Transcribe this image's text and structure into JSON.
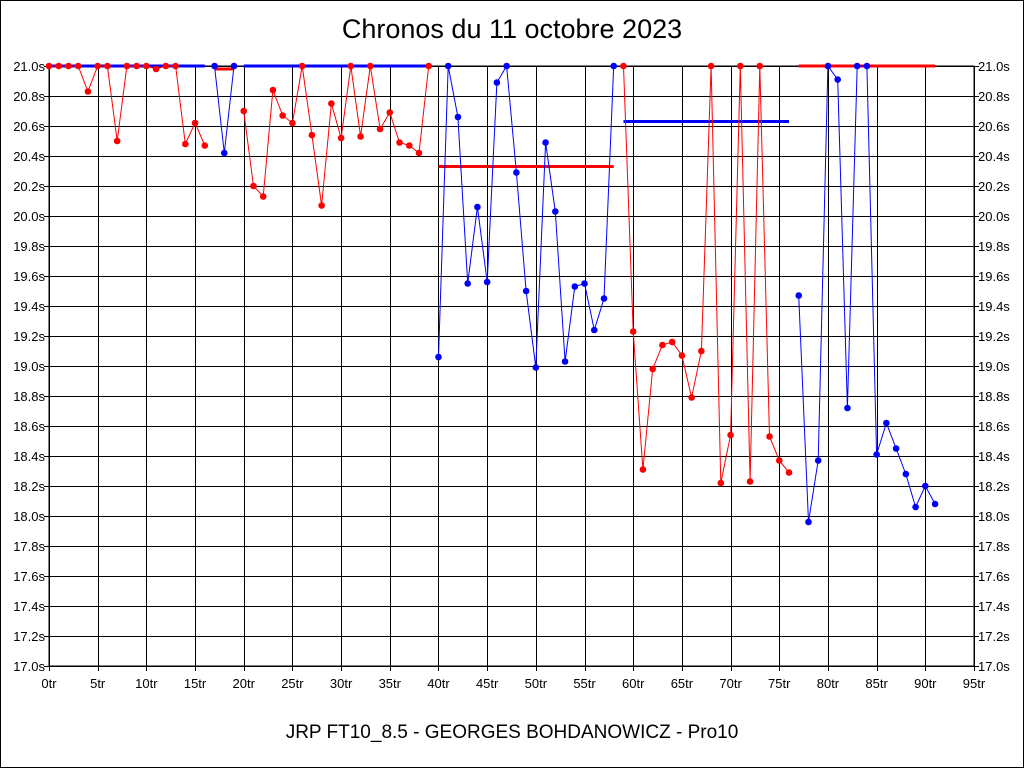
{
  "title": "Chronos du 11 octobre 2023",
  "footer": "JRP FT10_8.5 - GEORGES BOHDANOWICZ - Pro10",
  "chart_data": {
    "type": "line",
    "title": "Chronos du 11 octobre 2023",
    "xlabel": "",
    "ylabel": "",
    "xlim": [
      0,
      95
    ],
    "ylim": [
      17.0,
      21.0
    ],
    "grid": true,
    "x_ticks": [
      0,
      5,
      10,
      15,
      20,
      25,
      30,
      35,
      40,
      45,
      50,
      55,
      60,
      65,
      70,
      75,
      80,
      85,
      90,
      95
    ],
    "x_tick_labels": [
      "0tr",
      "5tr",
      "10tr",
      "15tr",
      "20tr",
      "25tr",
      "30tr",
      "35tr",
      "40tr",
      "45tr",
      "50tr",
      "55tr",
      "60tr",
      "65tr",
      "70tr",
      "75tr",
      "80tr",
      "85tr",
      "90tr",
      "95tr"
    ],
    "y_ticks": [
      17.0,
      17.2,
      17.4,
      17.6,
      17.8,
      18.0,
      18.2,
      18.4,
      18.6,
      18.8,
      19.0,
      19.2,
      19.4,
      19.6,
      19.8,
      20.0,
      20.2,
      20.4,
      20.6,
      20.8,
      21.0
    ],
    "y_tick_labels": [
      "17.0s",
      "17.2s",
      "17.4s",
      "17.6s",
      "17.8s",
      "18.0s",
      "18.2s",
      "18.4s",
      "18.6s",
      "18.8s",
      "19.0s",
      "19.2s",
      "19.4s",
      "19.6s",
      "19.8s",
      "20.0s",
      "20.2s",
      "20.4s",
      "20.6s",
      "20.8s",
      "21.0s"
    ],
    "colors": {
      "red": "#ff0000",
      "blue": "#0000ff",
      "grid": "#000000"
    },
    "segments": [
      {
        "color": "#ff0000",
        "points": [
          [
            0,
            21.0
          ],
          [
            1,
            21.0
          ],
          [
            2,
            21.0
          ],
          [
            3,
            21.0
          ],
          [
            4,
            20.83
          ],
          [
            5,
            21.0
          ],
          [
            6,
            21.0
          ],
          [
            7,
            20.5
          ],
          [
            8,
            21.0
          ],
          [
            9,
            21.0
          ],
          [
            10,
            21.0
          ],
          [
            11,
            20.98
          ],
          [
            12,
            21.0
          ],
          [
            13,
            21.0
          ],
          [
            14,
            20.48
          ],
          [
            15,
            20.62
          ],
          [
            16,
            20.47
          ]
        ]
      },
      {
        "color": "#0000ff",
        "points": [
          [
            17,
            21.0
          ],
          [
            18,
            20.42
          ],
          [
            19,
            21.0
          ]
        ]
      },
      {
        "color": "#ff0000",
        "points": [
          [
            20,
            20.7
          ],
          [
            21,
            20.2
          ],
          [
            22,
            20.13
          ],
          [
            23,
            20.84
          ],
          [
            24,
            20.67
          ],
          [
            25,
            20.62
          ],
          [
            26,
            21.0
          ],
          [
            27,
            20.54
          ],
          [
            28,
            20.07
          ],
          [
            29,
            20.75
          ],
          [
            30,
            20.52
          ],
          [
            31,
            21.0
          ],
          [
            32,
            20.53
          ],
          [
            33,
            21.0
          ],
          [
            34,
            20.58
          ],
          [
            35,
            20.69
          ],
          [
            36,
            20.49
          ],
          [
            37,
            20.47
          ],
          [
            38,
            20.42
          ],
          [
            39,
            21.0
          ]
        ]
      },
      {
        "color": "#0000ff",
        "points": [
          [
            40,
            19.06
          ],
          [
            41,
            21.0
          ],
          [
            42,
            20.66
          ],
          [
            43,
            19.55
          ],
          [
            44,
            20.06
          ],
          [
            45,
            19.56
          ],
          [
            46,
            20.89
          ],
          [
            47,
            21.0
          ],
          [
            48,
            20.29
          ],
          [
            49,
            19.5
          ],
          [
            50,
            18.99
          ],
          [
            51,
            20.49
          ],
          [
            52,
            20.03
          ],
          [
            53,
            19.03
          ],
          [
            54,
            19.53
          ],
          [
            55,
            19.55
          ],
          [
            56,
            19.24
          ],
          [
            57,
            19.45
          ],
          [
            58,
            21.0
          ]
        ]
      },
      {
        "color": "#ff0000",
        "points": [
          [
            59,
            21.0
          ],
          [
            60,
            19.23
          ],
          [
            61,
            18.31
          ],
          [
            62,
            18.98
          ],
          [
            63,
            19.14
          ],
          [
            64,
            19.16
          ],
          [
            65,
            19.07
          ],
          [
            66,
            18.79
          ],
          [
            67,
            19.1
          ],
          [
            68,
            21.0
          ],
          [
            69,
            18.22
          ],
          [
            70,
            18.54
          ],
          [
            71,
            21.0
          ],
          [
            72,
            18.23
          ],
          [
            73,
            21.0
          ],
          [
            74,
            18.53
          ],
          [
            75,
            18.37
          ],
          [
            76,
            18.29
          ]
        ]
      },
      {
        "color": "#0000ff",
        "points": [
          [
            77,
            19.47
          ],
          [
            78,
            17.96
          ],
          [
            79,
            18.37
          ],
          [
            80,
            21.0
          ],
          [
            81,
            20.91
          ],
          [
            82,
            18.72
          ],
          [
            83,
            21.0
          ],
          [
            84,
            21.0
          ],
          [
            85,
            18.41
          ],
          [
            86,
            18.62
          ],
          [
            87,
            18.45
          ],
          [
            88,
            18.28
          ],
          [
            89,
            18.06
          ],
          [
            90,
            18.2
          ],
          [
            91,
            18.08
          ]
        ]
      }
    ],
    "average_lines": [
      {
        "color": "#0000ff",
        "x_start": 0,
        "x_end": 16,
        "y": 21.0
      },
      {
        "color": "#ff0000",
        "x_start": 17,
        "x_end": 19,
        "y": 20.98
      },
      {
        "color": "#0000ff",
        "x_start": 20,
        "x_end": 39,
        "y": 21.0
      },
      {
        "color": "#ff0000",
        "x_start": 40,
        "x_end": 58,
        "y": 20.33
      },
      {
        "color": "#0000ff",
        "x_start": 59,
        "x_end": 76,
        "y": 20.63
      },
      {
        "color": "#ff0000",
        "x_start": 77,
        "x_end": 91,
        "y": 21.0
      }
    ]
  }
}
